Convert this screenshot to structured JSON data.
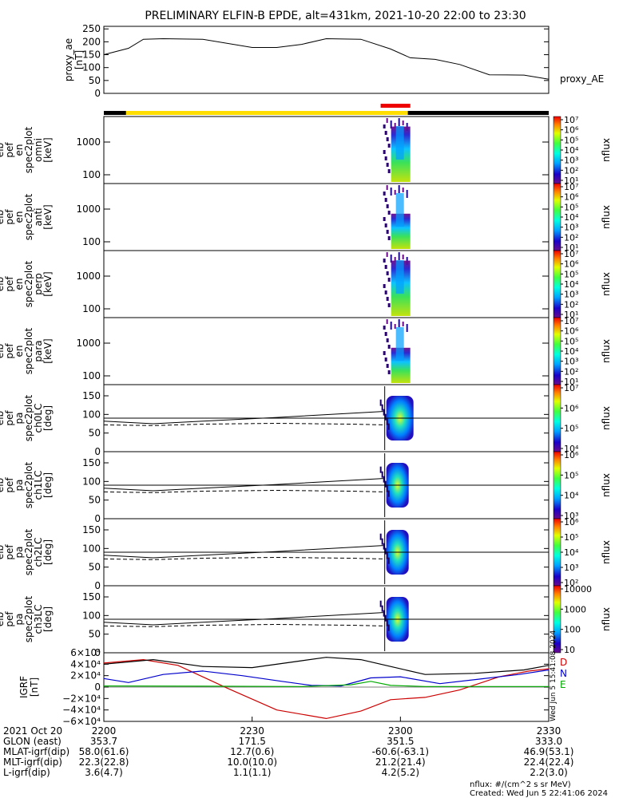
{
  "title": "PRELIMINARY ELFIN-B EPDE, alt=431km, 2021-10-20 22:00 to 23:30",
  "chart_data": [
    {
      "id": "proxy_ae",
      "type": "line",
      "ylabel": [
        "proxy_ae",
        "[nT]"
      ],
      "legend": "proxy_AE",
      "yticks": [
        "250",
        "200",
        "150",
        "100",
        "50",
        "0"
      ],
      "ylim": [
        0,
        260
      ],
      "x_minutes": [
        0,
        5,
        8,
        12,
        20,
        30,
        35,
        40,
        45,
        52,
        58,
        62,
        67,
        72,
        78,
        85,
        90
      ],
      "values": [
        150,
        175,
        210,
        212,
        210,
        178,
        178,
        190,
        212,
        210,
        172,
        138,
        132,
        112,
        72,
        71,
        55
      ]
    },
    {
      "id": "flag_bar",
      "type": "bar",
      "segments": [
        {
          "from_min": 0,
          "to_min": 4.5,
          "color": "#000000"
        },
        {
          "from_min": 4.5,
          "to_min": 61.5,
          "color": "#ffdd00"
        },
        {
          "from_min": 61.5,
          "to_min": 90,
          "color": "#000000"
        }
      ],
      "marker": {
        "from_min": 56,
        "to_min": 62,
        "color": "#ee0000"
      }
    },
    {
      "id": "omni",
      "type": "heatmap",
      "ylabel": [
        "elb",
        "pef",
        "en",
        "spec2plot",
        "omni",
        "[keV]"
      ],
      "yticks": [
        "1000",
        "100"
      ],
      "cbar_label": "nflux",
      "cbar_ticks": [
        "10⁷",
        "10⁶",
        "10⁵",
        "10⁴",
        "10³",
        "10²",
        "10¹"
      ]
    },
    {
      "id": "anti",
      "type": "heatmap",
      "ylabel": [
        "elb",
        "pef",
        "en",
        "spec2plot",
        "anti",
        "[keV]"
      ],
      "yticks": [
        "1000",
        "100"
      ],
      "cbar_label": "nflux",
      "cbar_ticks": [
        "10⁷",
        "10⁶",
        "10⁵",
        "10⁴",
        "10³",
        "10²",
        "10¹"
      ]
    },
    {
      "id": "perp",
      "type": "heatmap",
      "ylabel": [
        "elb",
        "pef",
        "en",
        "spec2plot",
        "perp",
        "[keV]"
      ],
      "yticks": [
        "1000",
        "100"
      ],
      "cbar_label": "nflux",
      "cbar_ticks": [
        "10⁷",
        "10⁶",
        "10⁵",
        "10⁴",
        "10³",
        "10²",
        "10¹"
      ]
    },
    {
      "id": "para",
      "type": "heatmap",
      "ylabel": [
        "elb",
        "pef",
        "en",
        "spec2plot",
        "para",
        "[keV]"
      ],
      "yticks": [
        "1000",
        "100"
      ],
      "cbar_label": "nflux",
      "cbar_ticks": [
        "10⁷",
        "10⁶",
        "10⁵",
        "10⁴",
        "10³",
        "10²",
        "10¹"
      ]
    },
    {
      "id": "ch0LC",
      "type": "heatmap",
      "ylabel": [
        "elb",
        "pef",
        "pa",
        "spec2plot",
        "ch0LC",
        "[deg]"
      ],
      "yticks": [
        "150",
        "100",
        "50",
        "0"
      ],
      "cbar_label": "nflux",
      "cbar_ticks": [
        "10⁷",
        "10⁶",
        "10⁵",
        "10⁴"
      ]
    },
    {
      "id": "ch1LC",
      "type": "heatmap",
      "ylabel": [
        "elb",
        "pef",
        "pa",
        "spec2plot",
        "ch1LC",
        "[deg]"
      ],
      "yticks": [
        "150",
        "100",
        "50",
        "0"
      ],
      "cbar_label": "nflux",
      "cbar_ticks": [
        "10⁶",
        "10⁵",
        "10⁴",
        "10³"
      ]
    },
    {
      "id": "ch2LC",
      "type": "heatmap",
      "ylabel": [
        "elb",
        "pef",
        "pa",
        "spec2plot",
        "ch2LC",
        "[deg]"
      ],
      "yticks": [
        "150",
        "100",
        "50",
        "0"
      ],
      "cbar_label": "nflux",
      "cbar_ticks": [
        "10⁶",
        "10⁵",
        "10⁴",
        "10³",
        "10²"
      ]
    },
    {
      "id": "ch3LC",
      "type": "heatmap",
      "ylabel": [
        "elb",
        "pef",
        "pa",
        "spec2plot",
        "ch3LC",
        "[deg]"
      ],
      "yticks": [
        "150",
        "100",
        "50",
        "0"
      ],
      "cbar_label": "nflux",
      "cbar_ticks": [
        "10000",
        "1000",
        "100",
        "10"
      ]
    },
    {
      "id": "igrf",
      "type": "line",
      "ylabel": [
        "IGRF",
        "[nT]"
      ],
      "yticks": [
        "6×10⁴",
        "4×10⁴",
        "2×10⁴",
        "0",
        "−2×10⁴",
        "−4×10⁴",
        "−6×10⁴"
      ],
      "ylim": [
        -60000,
        60000
      ],
      "series": [
        {
          "name": "D",
          "color": "#cc0000",
          "x_minutes": [
            0,
            8,
            15,
            25,
            35,
            45,
            52,
            58,
            65,
            72,
            80,
            86,
            90
          ],
          "values": [
            42000,
            48000,
            38000,
            -2000,
            -40000,
            -55000,
            -42000,
            -22000,
            -18000,
            -5000,
            18000,
            28000,
            32000
          ]
        },
        {
          "name": "N",
          "color": "#0000cc",
          "x_minutes": [
            0,
            5,
            12,
            20,
            28,
            36,
            42,
            48,
            54,
            60,
            68,
            76,
            84,
            90
          ],
          "values": [
            15000,
            8000,
            22000,
            28000,
            20000,
            10000,
            3000,
            2000,
            16000,
            18000,
            6000,
            14000,
            22000,
            30000
          ]
        },
        {
          "name": "E",
          "color": "#00aa00",
          "x_minutes": [
            0,
            20,
            40,
            50,
            54,
            58,
            65,
            90
          ],
          "values": [
            2000,
            1500,
            1000,
            4000,
            10000,
            3000,
            1000,
            1000
          ]
        },
        {
          "name": "total",
          "color": "#000000",
          "x_minutes": [
            0,
            10,
            20,
            30,
            40,
            45,
            52,
            58,
            65,
            75,
            85,
            90
          ],
          "values": [
            40000,
            48000,
            36000,
            34000,
            46000,
            52000,
            48000,
            36000,
            22000,
            24000,
            30000,
            38000
          ]
        }
      ],
      "side_note": "Wed Jun  5 15:41:08 2024"
    }
  ],
  "xaxis": {
    "ticks": [
      "2200",
      "2230",
      "2300",
      "2330"
    ],
    "rows": [
      {
        "label": "2021 Oct 20",
        "values": [
          "2200",
          "2230",
          "2300",
          "2330"
        ]
      },
      {
        "label": "GLON (east)",
        "values": [
          "353.7",
          "171.5",
          "351.5",
          "333.0"
        ]
      },
      {
        "label": "MLAT-igrf(dip)",
        "values": [
          "58.0(61.6)",
          "12.7(0.6)",
          "-60.6(-63.1)",
          "46.9(53.1)"
        ]
      },
      {
        "label": "MLT-igrf(dip)",
        "values": [
          "22.3(22.8)",
          "10.0(10.0)",
          "21.2(21.4)",
          "22.4(22.4)"
        ]
      },
      {
        "label": "L-igrf(dip)",
        "values": [
          "3.6(4.7)",
          "1.1(1.1)",
          "4.2(5.2)",
          "2.2(3.0)"
        ]
      }
    ]
  },
  "footer": {
    "units": "nflux: #/(cm^2 s sr MeV)",
    "created": "Created: Wed Jun  5 22:41:06 2024"
  }
}
